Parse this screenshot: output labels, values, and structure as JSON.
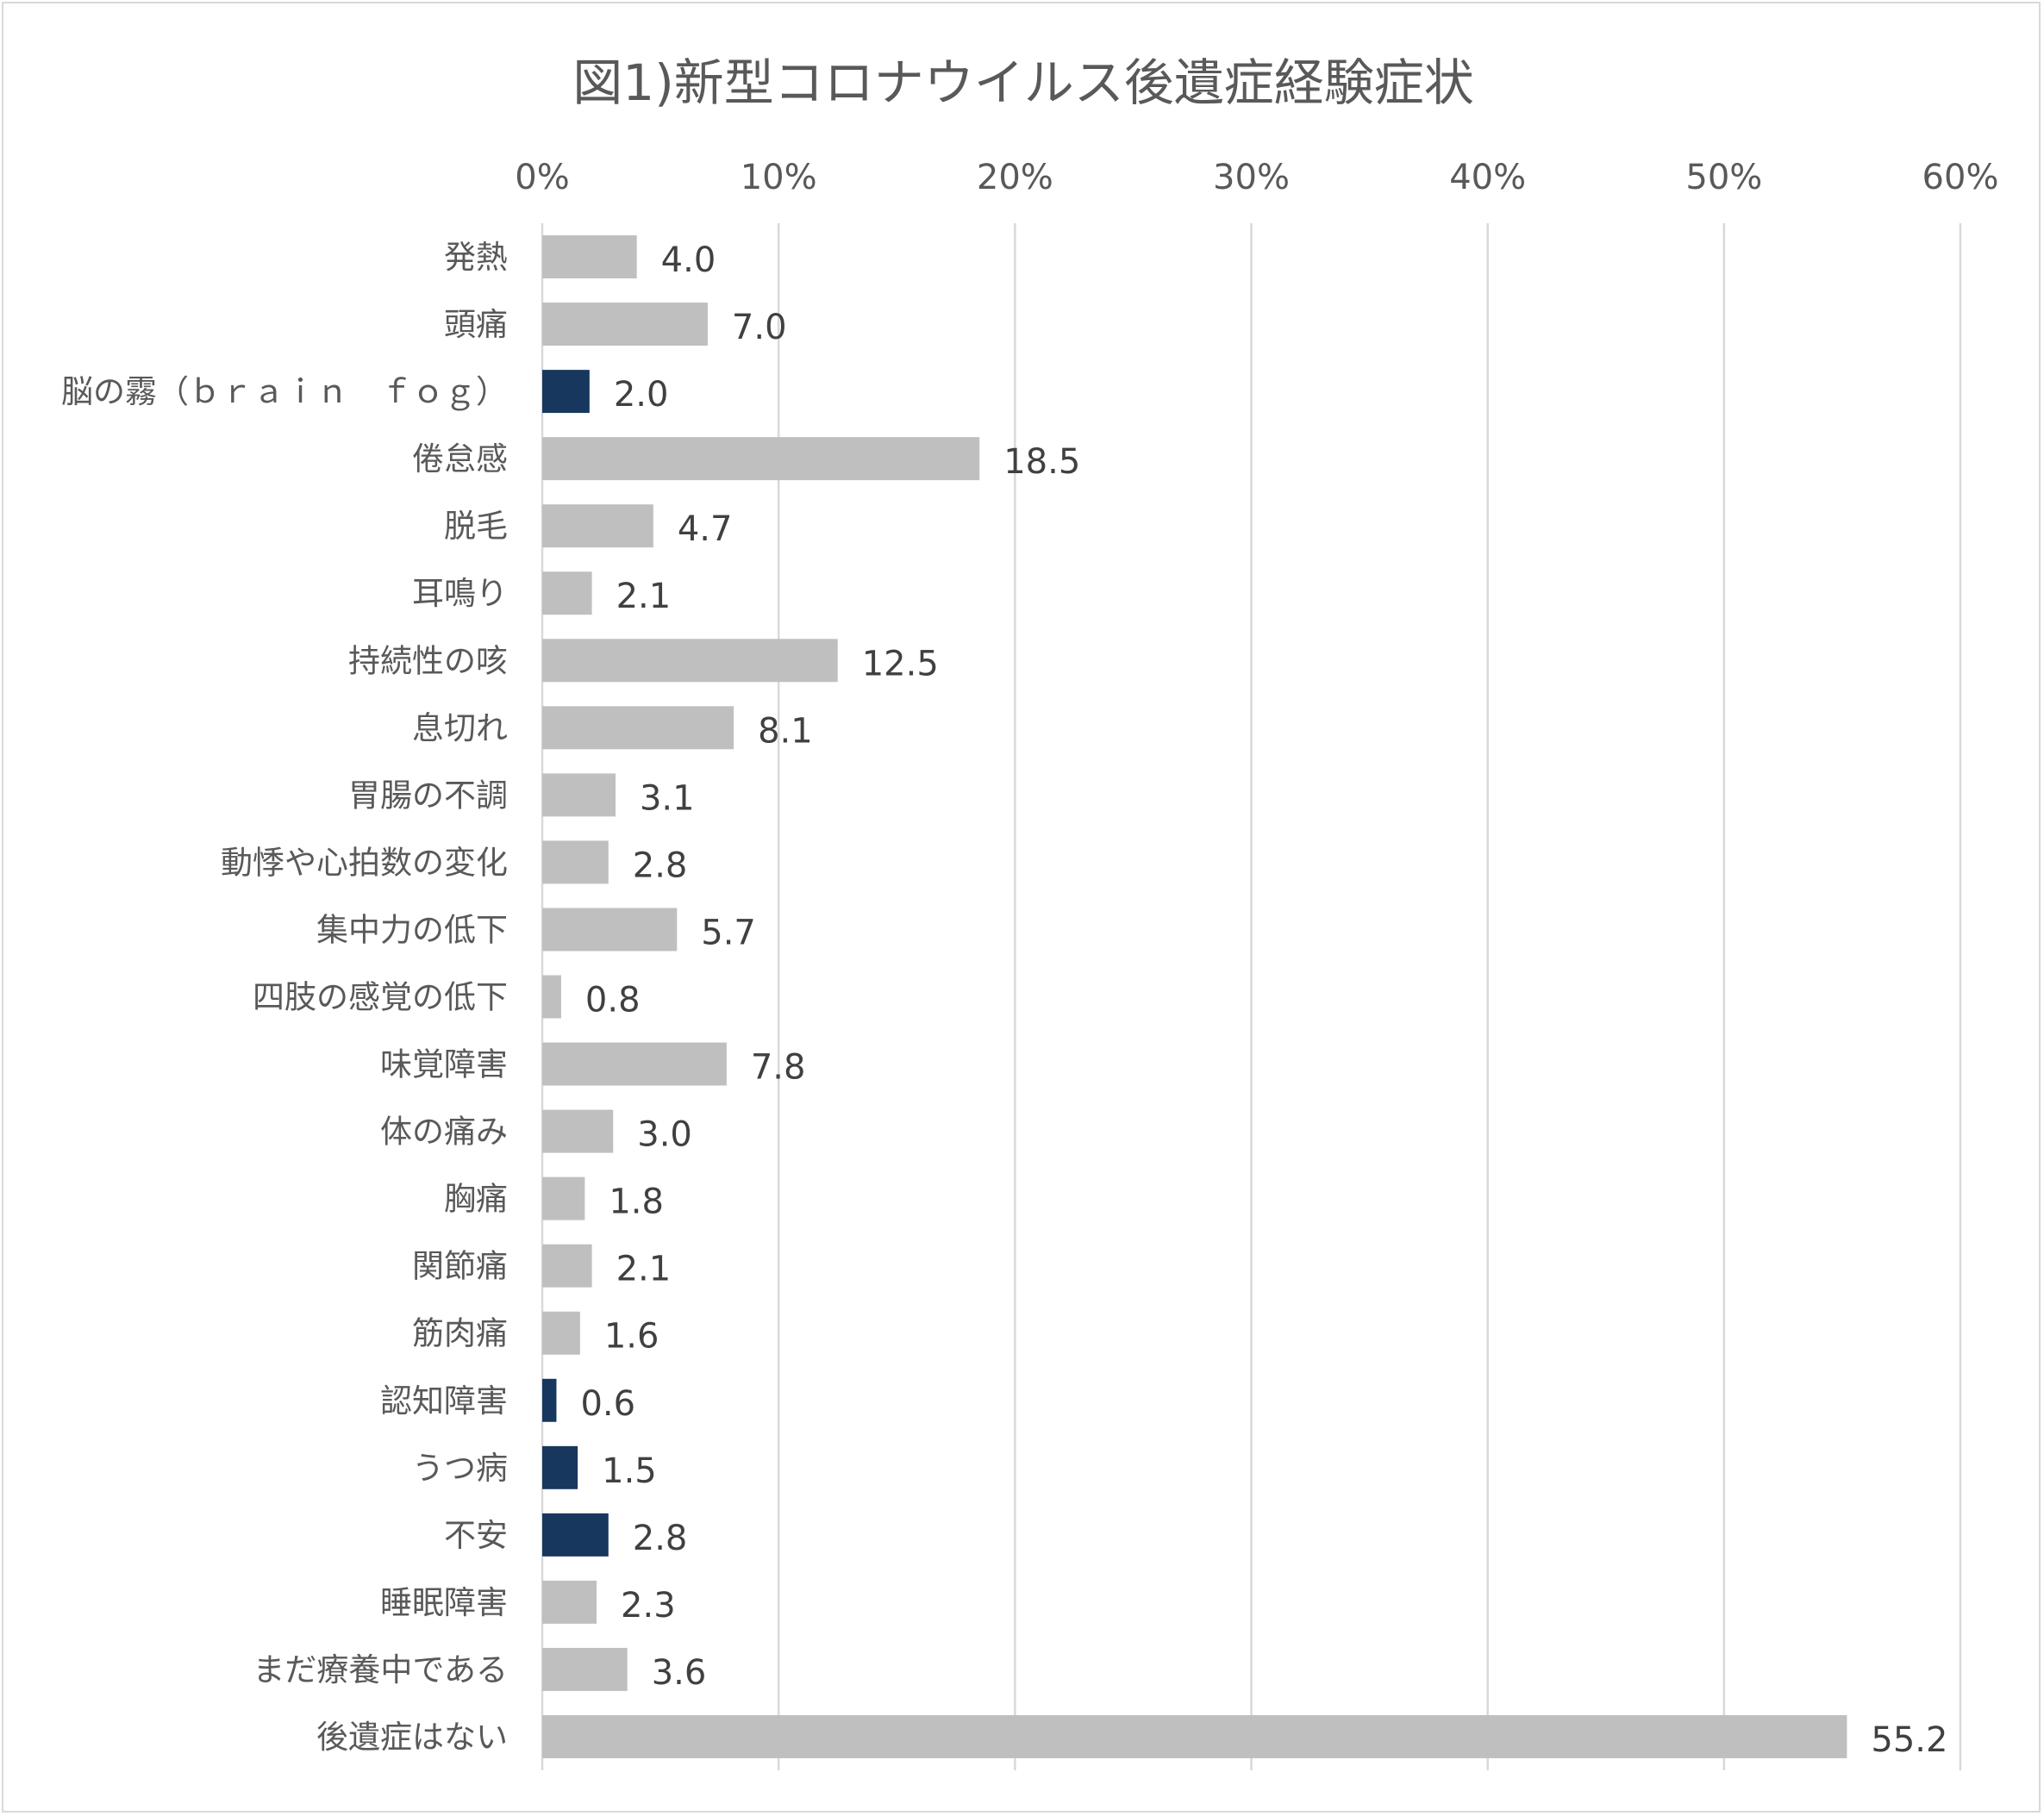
{
  "chart_data": {
    "type": "bar",
    "orientation": "horizontal",
    "title": "図1)新型コロナウイルス後遺症経験症状",
    "xlim": [
      0,
      60
    ],
    "xticks": [
      "0%",
      "10%",
      "20%",
      "30%",
      "40%",
      "50%",
      "60%"
    ],
    "grid": true,
    "legend": "none",
    "colors": {
      "default": "#bfbfbf",
      "highlight": "#17375e"
    },
    "categories": [
      "発熱",
      "頭痛",
      "脳の霧（ｂｒａｉｎ　ｆｏｇ）",
      "倦怠感",
      "脱毛",
      "耳鳴り",
      "持続性の咳",
      "息切れ",
      "胃腸の不調",
      "動悸や心拍数の変化",
      "集中力の低下",
      "四肢の感覚の低下",
      "味覚障害",
      "体の痛み",
      "胸痛",
      "関節痛",
      "筋肉痛",
      "認知障害",
      "うつ病",
      "不安",
      "睡眠障害",
      "まだ療養中である",
      "後遺症はない"
    ],
    "values": [
      4.0,
      7.0,
      2.0,
      18.5,
      4.7,
      2.1,
      12.5,
      8.1,
      3.1,
      2.8,
      5.7,
      0.8,
      7.8,
      3.0,
      1.8,
      2.1,
      1.6,
      0.6,
      1.5,
      2.8,
      2.3,
      3.6,
      55.2
    ],
    "labels": [
      "4.0",
      "7.0",
      "2.0",
      "18.5",
      "4.7",
      "2.1",
      "12.5",
      "8.1",
      "3.1",
      "2.8",
      "5.7",
      "0.8",
      "7.8",
      "3.0",
      "1.8",
      "2.1",
      "1.6",
      "0.6",
      "1.5",
      "2.8",
      "2.3",
      "3.6",
      "55.2"
    ],
    "highlighted": [
      false,
      false,
      true,
      false,
      false,
      false,
      false,
      false,
      false,
      false,
      false,
      false,
      false,
      false,
      false,
      false,
      false,
      true,
      true,
      true,
      false,
      false,
      false
    ]
  }
}
